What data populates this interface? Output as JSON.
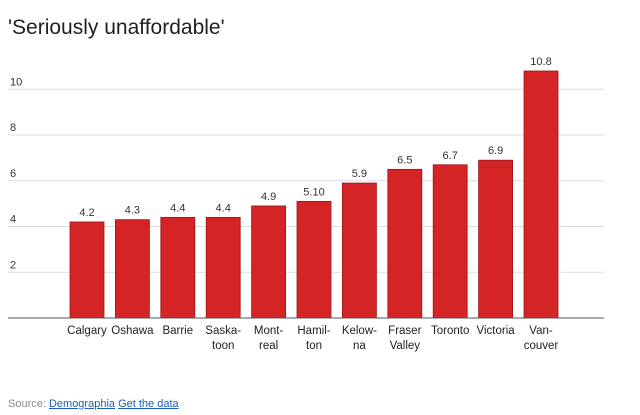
{
  "chart_data": {
    "type": "bar",
    "title": "'Seriously unaffordable'",
    "xlabel": "",
    "ylabel": "",
    "ylim": [
      0,
      11.5
    ],
    "yticks": [
      "2",
      "4",
      "6",
      "8",
      "10"
    ],
    "grid": true,
    "bar_color": "#d52426",
    "categories": [
      [
        "Calgary"
      ],
      [
        "Oshawa"
      ],
      [
        "Barrie"
      ],
      [
        "Saska-",
        "toon"
      ],
      [
        "Mont-",
        "real"
      ],
      [
        "Hamil-",
        "ton"
      ],
      [
        "Kelow-",
        "na"
      ],
      [
        "Fraser",
        "Valley"
      ],
      [
        "Toronto"
      ],
      [
        "Victoria"
      ],
      [
        "Van-",
        "couver"
      ]
    ],
    "values": [
      4.2,
      4.3,
      4.4,
      4.4,
      4.9,
      5.1,
      5.9,
      6.5,
      6.7,
      6.9,
      10.8
    ],
    "value_labels": [
      "4.2",
      "4.3",
      "4.4",
      "4.4",
      "4.9",
      "5.10",
      "5.9",
      "6.5",
      "6.7",
      "6.9",
      "10.8"
    ]
  },
  "source": {
    "prefix": "Source: ",
    "source_link": "Demographia",
    "data_link": "Get the data"
  }
}
